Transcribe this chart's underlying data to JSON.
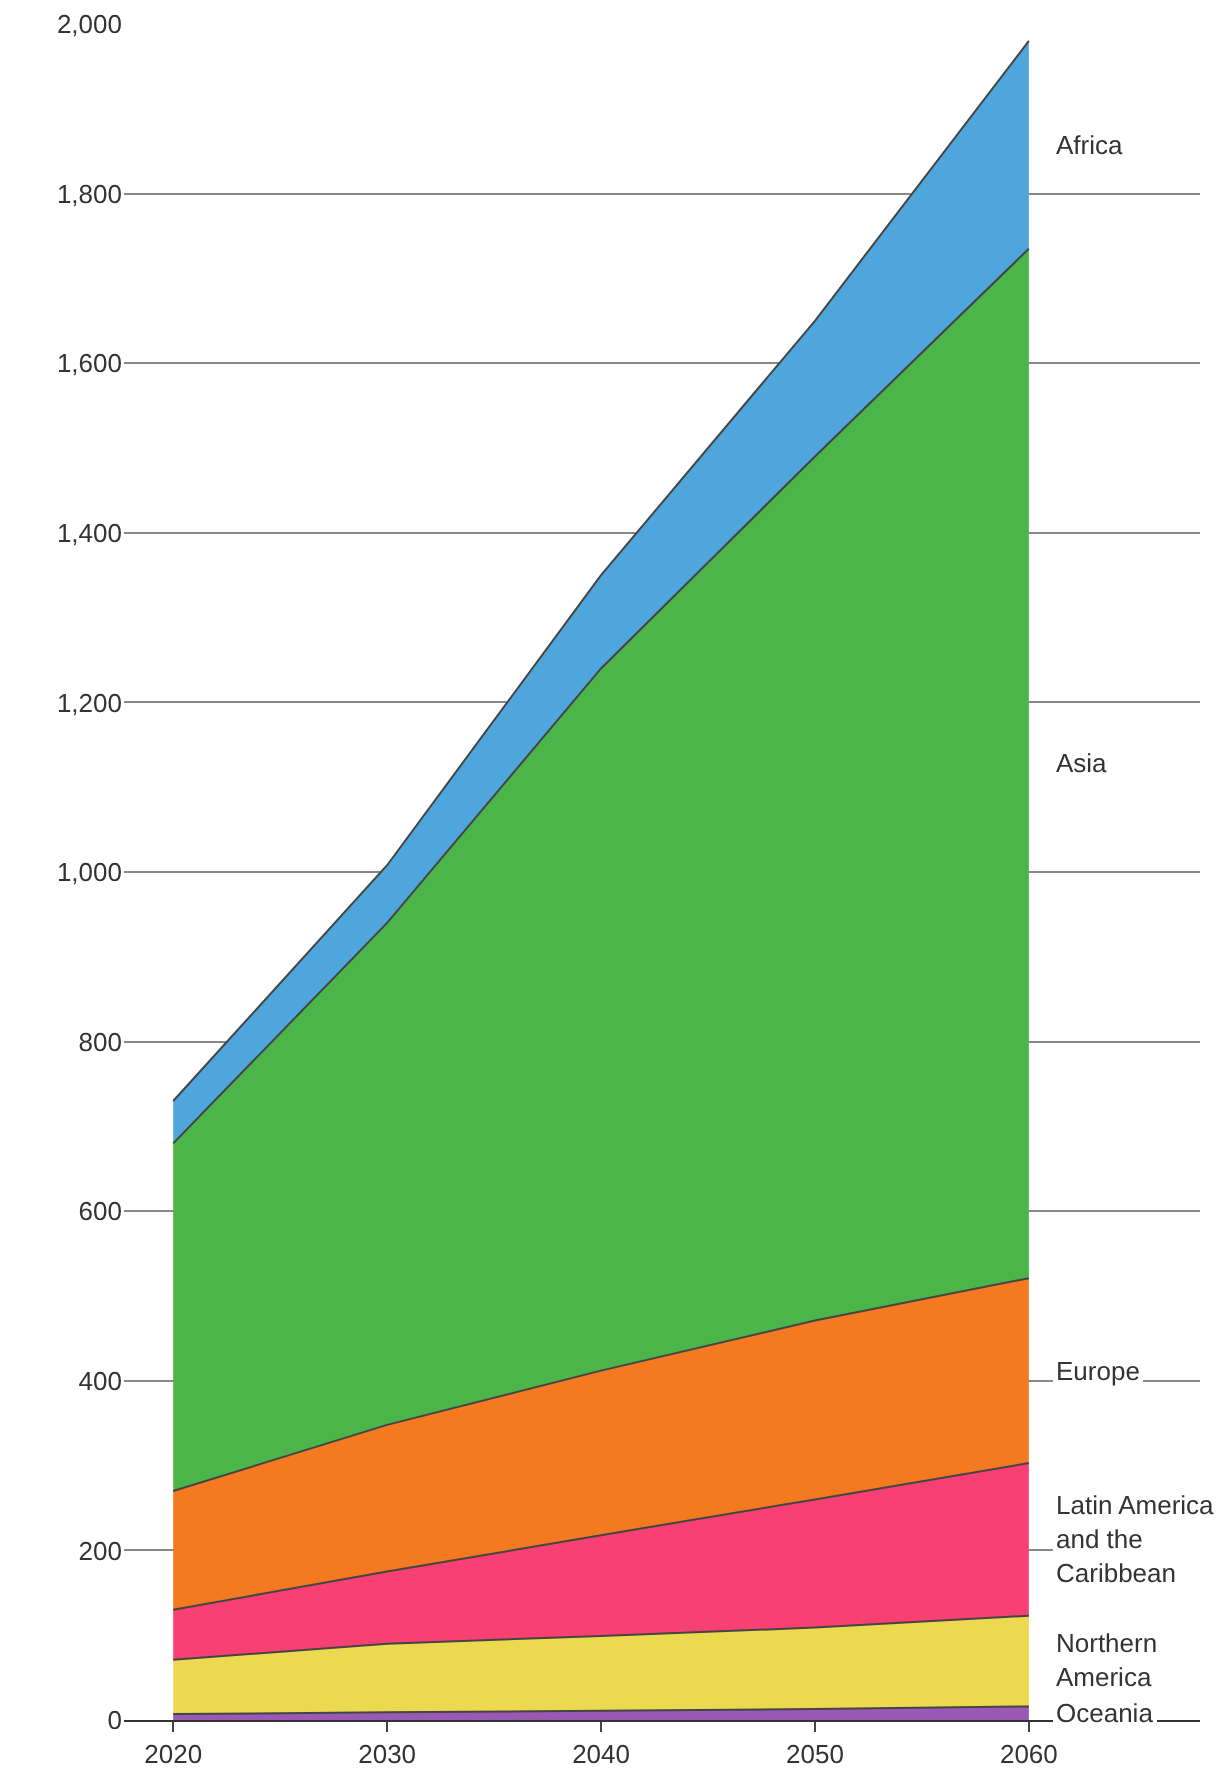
{
  "chart_data": {
    "type": "area",
    "stacked": true,
    "x": [
      2020,
      2030,
      2040,
      2050,
      2060
    ],
    "series": [
      {
        "name": "Oceania",
        "color": "#9b59b6",
        "values": [
          7,
          9,
          11,
          13,
          16
        ]
      },
      {
        "name": "Northern America",
        "color": "#ecd94f",
        "values": [
          64,
          81,
          88,
          96,
          107
        ]
      },
      {
        "name": "Latin America and the Caribbean",
        "color": "#f94073",
        "values": [
          59,
          85,
          119,
          151,
          180
        ]
      },
      {
        "name": "Europe",
        "color": "#f47920",
        "values": [
          140,
          173,
          194,
          211,
          218
        ]
      },
      {
        "name": "Asia",
        "color": "#4bb549",
        "values": [
          410,
          592,
          828,
          1019,
          1214
        ]
      },
      {
        "name": "Africa",
        "color": "#4ea6dc",
        "values": [
          50,
          68,
          110,
          160,
          245
        ]
      }
    ],
    "xlim": [
      2017.7,
      2068
    ],
    "xticks": [
      2020,
      2030,
      2040,
      2050,
      2060
    ],
    "ylim": [
      0,
      2000
    ],
    "yticks": [
      {
        "value": 0,
        "label": "0"
      },
      {
        "value": 200,
        "label": "200"
      },
      {
        "value": 400,
        "label": "400"
      },
      {
        "value": 600,
        "label": "600"
      },
      {
        "value": 800,
        "label": "800"
      },
      {
        "value": 1000,
        "label": "1,000"
      },
      {
        "value": 1200,
        "label": "1,200"
      },
      {
        "value": 1400,
        "label": "1,400"
      },
      {
        "value": 1600,
        "label": "1,600"
      },
      {
        "value": 1800,
        "label": "1,800"
      },
      {
        "value": 2000,
        "label": "2,000"
      }
    ],
    "grid": "y",
    "legend": false
  }
}
